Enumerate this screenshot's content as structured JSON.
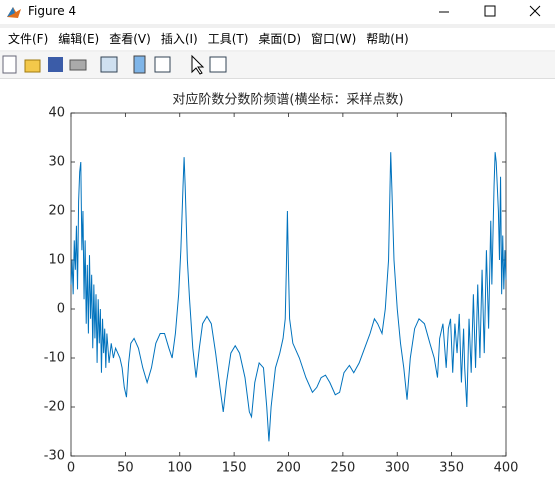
{
  "window": {
    "title": "Figure 4"
  },
  "menu": [
    "文件(F)",
    "编辑(E)",
    "查看(V)",
    "插入(I)",
    "工具(T)",
    "桌面(D)",
    "窗口(W)",
    "帮助(H)"
  ],
  "chart_data": {
    "type": "line",
    "title": "对应阶数分数阶频谱(横坐标：采样点数)",
    "x": [
      0,
      1,
      2,
      3,
      4,
      5,
      6,
      7,
      8,
      9,
      10,
      11,
      12,
      13,
      14,
      15,
      16,
      17,
      18,
      19,
      20,
      21,
      22,
      23,
      24,
      25,
      26,
      27,
      28,
      29,
      30,
      31,
      32,
      33,
      35,
      37,
      39,
      41,
      43,
      45,
      47,
      49,
      51,
      53,
      55,
      58,
      62,
      66,
      70,
      74,
      78,
      82,
      86,
      90,
      93,
      96,
      99,
      101,
      103,
      104,
      105,
      107,
      109,
      112,
      115,
      118,
      121,
      125,
      129,
      133,
      137,
      140,
      143,
      147,
      151,
      155,
      160,
      164,
      166,
      169,
      173,
      177,
      180,
      182,
      184,
      188,
      192,
      195,
      197,
      198,
      199,
      200,
      201,
      204,
      210,
      216,
      222,
      226,
      230,
      234,
      238,
      243,
      247,
      251,
      256,
      260,
      265,
      270,
      275,
      279,
      282,
      286,
      289,
      292,
      294,
      295,
      297,
      300,
      303,
      306,
      309,
      312,
      316,
      320,
      325,
      330,
      334,
      337,
      339,
      342,
      345,
      347,
      349,
      351,
      353,
      355,
      357,
      359,
      361,
      362,
      364,
      366,
      368,
      370,
      372,
      374,
      376,
      378,
      380,
      382,
      384,
      386,
      387,
      389,
      390,
      391,
      393,
      394,
      395,
      396,
      397,
      398,
      399,
      400
    ],
    "series": [
      {
        "color": "#0072bd",
        "values": [
          5,
          10,
          3,
          14,
          8,
          17,
          4,
          22,
          28,
          30,
          12,
          20,
          2,
          14,
          -3,
          9,
          -5,
          11,
          -2,
          7,
          -8,
          5,
          -6,
          3,
          -11,
          2,
          -7,
          0,
          -13,
          -2,
          -9,
          -4,
          -12,
          -5,
          -11,
          -7,
          -10,
          -8,
          -9,
          -10,
          -12,
          -16,
          -18,
          -11,
          -7,
          -6,
          -8,
          -12,
          -15,
          -12,
          -7,
          -5,
          -5,
          -8,
          -10,
          -5,
          3,
          12,
          25,
          31,
          25,
          10,
          2,
          -8,
          -14,
          -8,
          -3,
          -1.5,
          -3,
          -9,
          -16,
          -21,
          -15,
          -9,
          -7.5,
          -9,
          -14,
          -21,
          -22,
          -15,
          -11,
          -12,
          -20,
          -27,
          -20,
          -12,
          -9,
          -6,
          -2,
          8,
          20,
          8,
          -2,
          -7,
          -10,
          -14,
          -17,
          -16,
          -14,
          -13.5,
          -15,
          -17.5,
          -17,
          -13,
          -11.5,
          -13,
          -11,
          -8,
          -5,
          -2,
          -3,
          -5,
          0,
          10,
          32,
          25,
          10,
          0,
          -7,
          -12,
          -18.5,
          -10,
          -4,
          -2,
          -3,
          -7,
          -10,
          -14,
          -6,
          -3,
          -12,
          -4,
          -2,
          -13,
          -3,
          -9,
          -1,
          -15,
          -4,
          -12,
          -20,
          -2,
          -13,
          3,
          -12,
          5,
          -10,
          8,
          -9,
          12,
          -4,
          18,
          5,
          25,
          32,
          30,
          20,
          10,
          27,
          3,
          15,
          4,
          12,
          6
        ]
      }
    ],
    "xlim": [
      0,
      400
    ],
    "xticks": [
      0,
      50,
      100,
      150,
      200,
      250,
      300,
      350,
      400
    ],
    "ylim": [
      -30,
      40
    ],
    "yticks": [
      -30,
      -20,
      -10,
      0,
      10,
      20,
      30,
      40
    ]
  }
}
